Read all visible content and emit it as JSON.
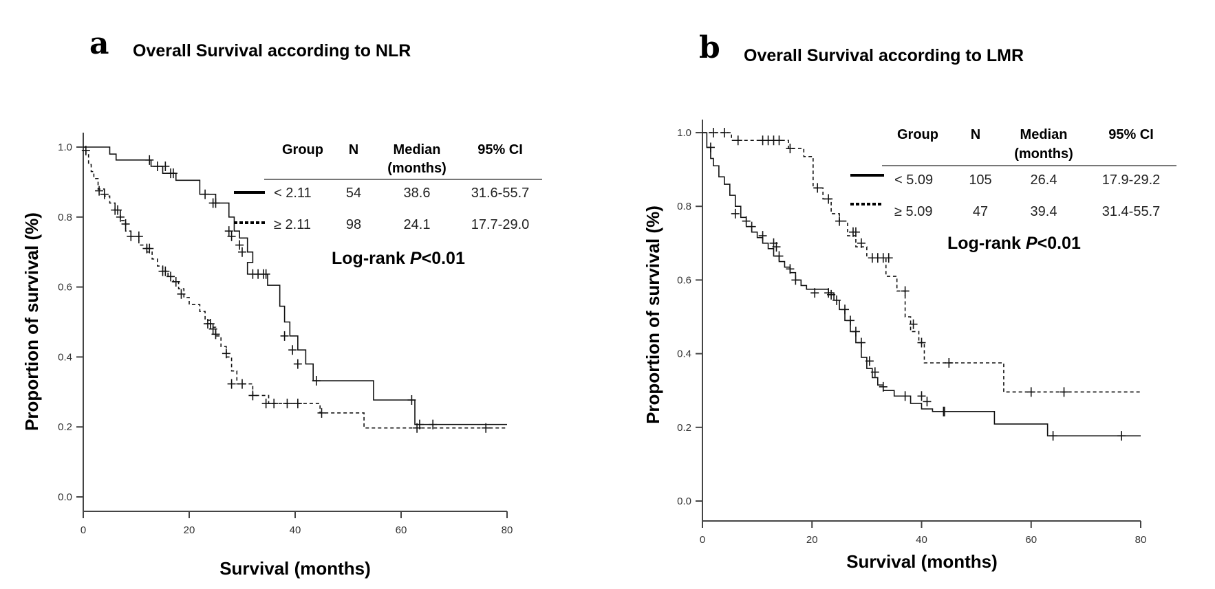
{
  "chart_data": [
    {
      "type": "line",
      "subtype": "kaplan-meier",
      "panel_label": "a",
      "title": "Overall Survival according to NLR",
      "xlabel": "Survival (months)",
      "ylabel": "Proportion of survival (%)",
      "xlim": [
        0,
        80
      ],
      "ylim": [
        0,
        1.0
      ],
      "xticks": [
        "0",
        "20",
        "40",
        "60",
        "80"
      ],
      "yticks": [
        "0.0",
        "0.2",
        "0.4",
        "0.6",
        "0.8",
        "1.0"
      ],
      "grid": false,
      "table": {
        "headers": [
          "Group",
          "N",
          "Median",
          "95% CI"
        ],
        "header_sub": "(months)",
        "rows": [
          {
            "style": "solid",
            "group": "< 2.11",
            "n": "54",
            "median": "38.6",
            "ci": "31.6-55.7"
          },
          {
            "style": "dashed",
            "group": "≥ 2.11",
            "n": "98",
            "median": "24.1",
            "ci": "17.7-29.0"
          }
        ],
        "logrank_prefix": "Log-rank ",
        "logrank_p": "P",
        "logrank_suffix": "<0.01"
      },
      "series": [
        {
          "name": "< 2.11",
          "style": "solid",
          "steps": [
            [
              0,
              1.0
            ],
            [
              5,
              0.98
            ],
            [
              6.2,
              0.963
            ],
            [
              12.8,
              0.945
            ],
            [
              15,
              0.925
            ],
            [
              17.5,
              0.905
            ],
            [
              22,
              0.865
            ],
            [
              25,
              0.84
            ],
            [
              27.5,
              0.8
            ],
            [
              28.5,
              0.76
            ],
            [
              29.5,
              0.74
            ],
            [
              31,
              0.7
            ],
            [
              32,
              0.67
            ],
            [
              31,
              0.637
            ],
            [
              34.8,
              0.605
            ],
            [
              37.1,
              0.545
            ],
            [
              38,
              0.5
            ],
            [
              39,
              0.46
            ],
            [
              40.5,
              0.42
            ],
            [
              42,
              0.38
            ],
            [
              43.4,
              0.332
            ],
            [
              54.8,
              0.277
            ],
            [
              62.6,
              0.207
            ],
            [
              80,
              0.207
            ]
          ],
          "censored": [
            [
              12.5,
              0.963
            ],
            [
              14,
              0.945
            ],
            [
              15.5,
              0.945
            ],
            [
              16.5,
              0.925
            ],
            [
              17,
              0.925
            ],
            [
              23,
              0.865
            ],
            [
              24.5,
              0.84
            ],
            [
              25,
              0.84
            ],
            [
              27.5,
              0.76
            ],
            [
              28,
              0.745
            ],
            [
              29.5,
              0.72
            ],
            [
              30,
              0.7
            ],
            [
              32,
              0.637
            ],
            [
              33,
              0.637
            ],
            [
              34,
              0.637
            ],
            [
              34.5,
              0.637
            ],
            [
              38,
              0.46
            ],
            [
              39.5,
              0.42
            ],
            [
              40.5,
              0.38
            ],
            [
              44,
              0.332
            ],
            [
              62,
              0.277
            ],
            [
              63.5,
              0.207
            ],
            [
              66,
              0.207
            ]
          ]
        },
        {
          "name": "≥ 2.11",
          "style": "dashed",
          "steps": [
            [
              0,
              1.0
            ],
            [
              0.5,
              0.98
            ],
            [
              1,
              0.95
            ],
            [
              1.5,
              0.93
            ],
            [
              2,
              0.91
            ],
            [
              2.8,
              0.88
            ],
            [
              4,
              0.86
            ],
            [
              5,
              0.84
            ],
            [
              6,
              0.82
            ],
            [
              7,
              0.79
            ],
            [
              8,
              0.76
            ],
            [
              9,
              0.745
            ],
            [
              10.5,
              0.72
            ],
            [
              12,
              0.7
            ],
            [
              13,
              0.68
            ],
            [
              14,
              0.66
            ],
            [
              15,
              0.645
            ],
            [
              16,
              0.63
            ],
            [
              17,
              0.615
            ],
            [
              18,
              0.595
            ],
            [
              19,
              0.57
            ],
            [
              20,
              0.55
            ],
            [
              22,
              0.53
            ],
            [
              23,
              0.505
            ],
            [
              24,
              0.485
            ],
            [
              25,
              0.46
            ],
            [
              26,
              0.43
            ],
            [
              27,
              0.4
            ],
            [
              28,
              0.36
            ],
            [
              29,
              0.323
            ],
            [
              32,
              0.29
            ],
            [
              35,
              0.267
            ],
            [
              44.7,
              0.24
            ],
            [
              53,
              0.197
            ],
            [
              80,
              0.197
            ]
          ],
          "censored": [
            [
              0.5,
              0.99
            ],
            [
              3,
              0.875
            ],
            [
              4,
              0.865
            ],
            [
              6,
              0.82
            ],
            [
              6.5,
              0.82
            ],
            [
              7,
              0.8
            ],
            [
              8,
              0.78
            ],
            [
              9,
              0.745
            ],
            [
              10.5,
              0.745
            ],
            [
              12,
              0.71
            ],
            [
              12.5,
              0.71
            ],
            [
              15,
              0.645
            ],
            [
              15.5,
              0.645
            ],
            [
              16.5,
              0.63
            ],
            [
              17.5,
              0.615
            ],
            [
              18.5,
              0.58
            ],
            [
              23.5,
              0.495
            ],
            [
              24,
              0.495
            ],
            [
              24.5,
              0.48
            ],
            [
              25,
              0.465
            ],
            [
              27,
              0.41
            ],
            [
              28,
              0.323
            ],
            [
              30,
              0.323
            ],
            [
              32,
              0.29
            ],
            [
              34.5,
              0.267
            ],
            [
              36,
              0.267
            ],
            [
              38.5,
              0.267
            ],
            [
              40.5,
              0.267
            ],
            [
              45,
              0.24
            ],
            [
              63,
              0.197
            ],
            [
              76,
              0.197
            ]
          ]
        }
      ]
    },
    {
      "type": "line",
      "subtype": "kaplan-meier",
      "panel_label": "b",
      "title": "Overall Survival according to LMR",
      "xlabel": "Survival (months)",
      "ylabel": "Proportion of survival (%)",
      "xlim": [
        0,
        80
      ],
      "ylim": [
        0,
        1.0
      ],
      "xticks": [
        "0",
        "20",
        "40",
        "60",
        "80"
      ],
      "yticks": [
        "0.0",
        "0.2",
        "0.4",
        "0.6",
        "0.8",
        "1.0"
      ],
      "grid": false,
      "table": {
        "headers": [
          "Group",
          "N",
          "Median",
          "95% CI"
        ],
        "header_sub": "(months)",
        "rows": [
          {
            "style": "solid",
            "group": "< 5.09",
            "n": "105",
            "median": "26.4",
            "ci": "17.9-29.2"
          },
          {
            "style": "dashed",
            "group": "≥ 5.09",
            "n": "47",
            "median": "39.4",
            "ci": "31.4-55.7"
          }
        ],
        "logrank_prefix": "Log-rank ",
        "logrank_p": "P",
        "logrank_suffix": "<0.01"
      },
      "series": [
        {
          "name": "< 5.09",
          "style": "solid",
          "steps": [
            [
              0,
              1.0
            ],
            [
              0.8,
              0.96
            ],
            [
              1.5,
              0.93
            ],
            [
              2,
              0.91
            ],
            [
              3,
              0.88
            ],
            [
              4,
              0.86
            ],
            [
              5,
              0.83
            ],
            [
              6,
              0.8
            ],
            [
              7,
              0.77
            ],
            [
              8,
              0.745
            ],
            [
              9,
              0.73
            ],
            [
              10,
              0.715
            ],
            [
              11,
              0.7
            ],
            [
              12,
              0.685
            ],
            [
              13,
              0.665
            ],
            [
              14,
              0.65
            ],
            [
              15,
              0.635
            ],
            [
              16,
              0.62
            ],
            [
              17,
              0.6
            ],
            [
              18,
              0.585
            ],
            [
              19,
              0.575
            ],
            [
              23,
              0.565
            ],
            [
              24,
              0.545
            ],
            [
              25,
              0.52
            ],
            [
              26,
              0.49
            ],
            [
              27,
              0.46
            ],
            [
              28,
              0.43
            ],
            [
              29,
              0.39
            ],
            [
              30,
              0.36
            ],
            [
              31,
              0.335
            ],
            [
              32,
              0.315
            ],
            [
              33,
              0.3
            ],
            [
              35,
              0.285
            ],
            [
              38,
              0.265
            ],
            [
              40,
              0.25
            ],
            [
              42,
              0.243
            ],
            [
              53.3,
              0.209
            ],
            [
              63,
              0.177
            ],
            [
              80,
              0.177
            ]
          ],
          "censored": [
            [
              1.5,
              0.96
            ],
            [
              6,
              0.78
            ],
            [
              8,
              0.76
            ],
            [
              9,
              0.745
            ],
            [
              11,
              0.72
            ],
            [
              13,
              0.7
            ],
            [
              13.5,
              0.69
            ],
            [
              14,
              0.665
            ],
            [
              16,
              0.63
            ],
            [
              17,
              0.6
            ],
            [
              20.5,
              0.565
            ],
            [
              23,
              0.565
            ],
            [
              23.5,
              0.56
            ],
            [
              24.5,
              0.545
            ],
            [
              26,
              0.52
            ],
            [
              27,
              0.49
            ],
            [
              28,
              0.46
            ],
            [
              29,
              0.43
            ],
            [
              30.5,
              0.38
            ],
            [
              31.5,
              0.35
            ],
            [
              33,
              0.31
            ],
            [
              37,
              0.285
            ],
            [
              40,
              0.285
            ],
            [
              41,
              0.27
            ],
            [
              44,
              0.243
            ],
            [
              44.2,
              0.243
            ],
            [
              64,
              0.177
            ],
            [
              76.5,
              0.177
            ]
          ]
        },
        {
          "name": "≥ 5.09",
          "style": "dashed",
          "steps": [
            [
              0,
              1.0
            ],
            [
              5.3,
              0.979
            ],
            [
              15.7,
              0.957
            ],
            [
              18.5,
              0.935
            ],
            [
              20.2,
              0.85
            ],
            [
              22,
              0.82
            ],
            [
              23.5,
              0.78
            ],
            [
              25,
              0.76
            ],
            [
              26.5,
              0.72
            ],
            [
              28,
              0.69
            ],
            [
              30,
              0.66
            ],
            [
              33.5,
              0.61
            ],
            [
              35.5,
              0.57
            ],
            [
              37,
              0.5
            ],
            [
              38,
              0.46
            ],
            [
              39.5,
              0.43
            ],
            [
              40.5,
              0.375
            ],
            [
              43.5,
              0.375
            ],
            [
              55,
              0.296
            ],
            [
              80,
              0.296
            ]
          ],
          "censored": [
            [
              2,
              1.0
            ],
            [
              4,
              1.0
            ],
            [
              6.5,
              0.979
            ],
            [
              11,
              0.979
            ],
            [
              12,
              0.979
            ],
            [
              13,
              0.979
            ],
            [
              14,
              0.979
            ],
            [
              16,
              0.957
            ],
            [
              21,
              0.85
            ],
            [
              23,
              0.82
            ],
            [
              25,
              0.76
            ],
            [
              27.5,
              0.73
            ],
            [
              28,
              0.73
            ],
            [
              29,
              0.7
            ],
            [
              31,
              0.66
            ],
            [
              32,
              0.66
            ],
            [
              33,
              0.66
            ],
            [
              34,
              0.66
            ],
            [
              37,
              0.57
            ],
            [
              38.5,
              0.48
            ],
            [
              40,
              0.43
            ],
            [
              45,
              0.375
            ],
            [
              60,
              0.296
            ],
            [
              66,
              0.296
            ]
          ]
        }
      ]
    }
  ]
}
